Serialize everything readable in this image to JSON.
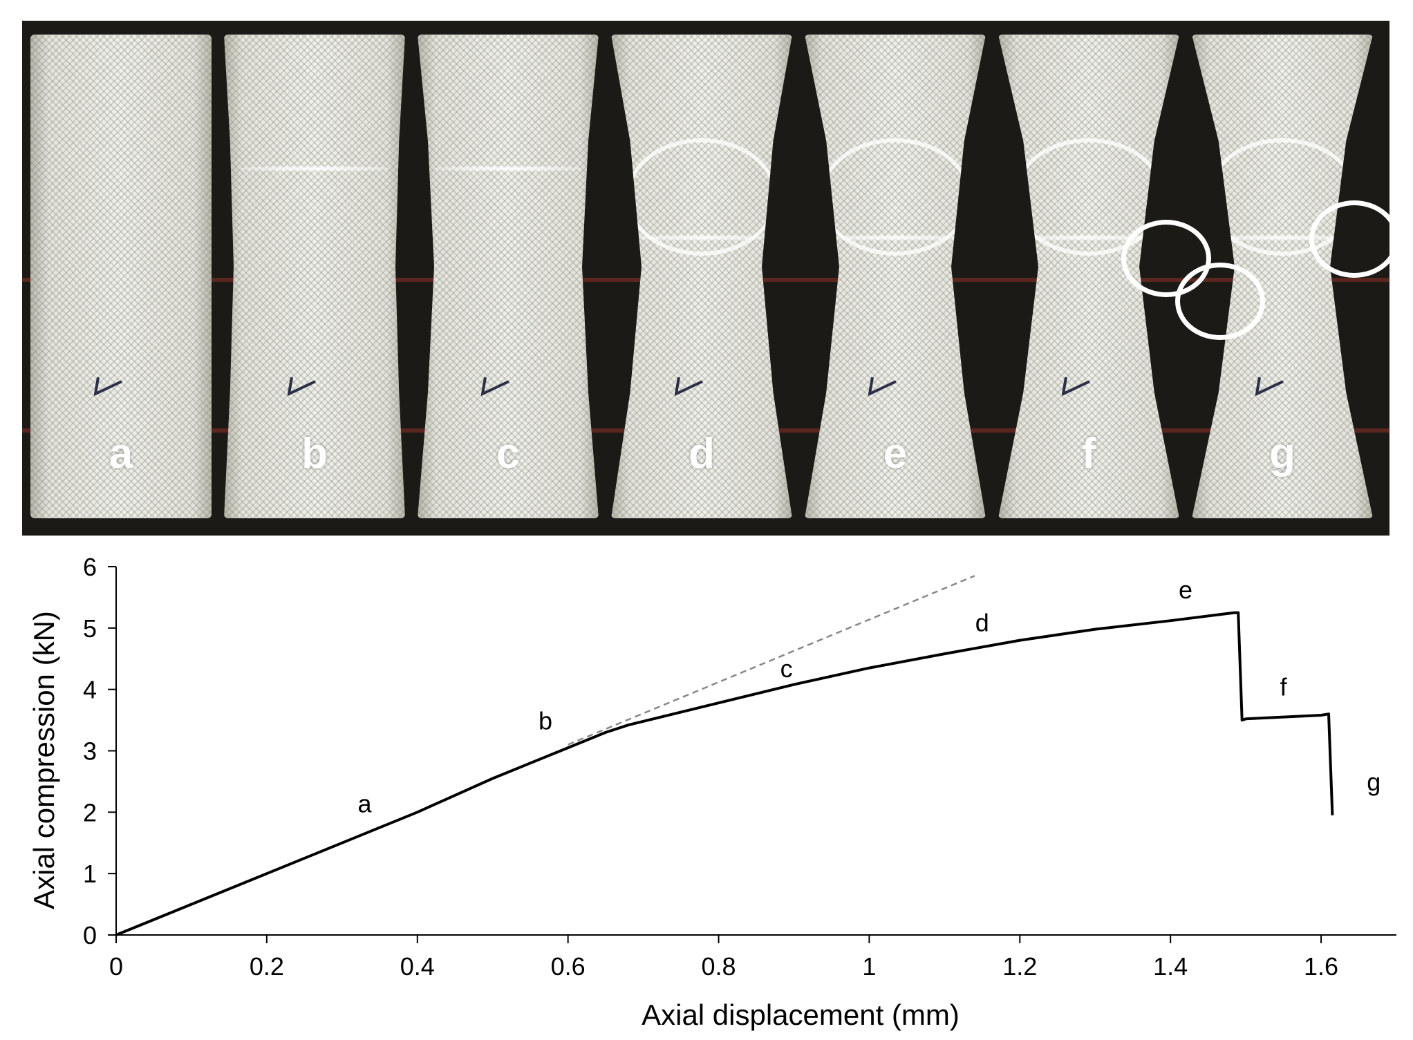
{
  "photo_panel": {
    "labels": [
      "a",
      "b",
      "c",
      "d",
      "e",
      "f",
      "g"
    ]
  },
  "chart_data": {
    "type": "line",
    "xlabel": "Axial displacement (mm)",
    "ylabel": "Axial compression (kN)",
    "xlim": [
      0,
      1.7
    ],
    "ylim": [
      0,
      6
    ],
    "xticks": [
      0,
      0.2,
      0.4,
      0.6,
      0.8,
      1,
      1.2,
      1.4,
      1.6
    ],
    "xtick_labels": [
      "0",
      "0.2",
      "0.4",
      "0.6",
      "0.8",
      "1",
      "1.2",
      "1.4",
      "1.6"
    ],
    "yticks": [
      0,
      1,
      2,
      3,
      4,
      5,
      6
    ],
    "ytick_labels": [
      "0",
      "1",
      "2",
      "3",
      "4",
      "5",
      "6"
    ],
    "grid": false,
    "series": [
      {
        "style": "solid",
        "color": "#000000",
        "x": [
          0,
          0.2,
          0.4,
          0.5,
          0.6,
          0.65,
          0.68,
          0.8,
          0.9,
          1.0,
          1.1,
          1.2,
          1.3,
          1.4,
          1.485,
          1.49,
          1.495,
          1.5,
          1.55,
          1.6,
          1.61,
          1.615
        ],
        "y": [
          0,
          1.0,
          2.0,
          2.55,
          3.05,
          3.3,
          3.42,
          3.78,
          4.08,
          4.35,
          4.58,
          4.8,
          4.98,
          5.12,
          5.25,
          5.25,
          3.5,
          3.52,
          3.55,
          3.58,
          3.6,
          1.95
        ]
      },
      {
        "style": "dashed",
        "color": "#888888",
        "x": [
          0.6,
          1.14
        ],
        "y": [
          3.1,
          5.85
        ]
      }
    ],
    "annotations": [
      {
        "text": "a",
        "x": 0.33,
        "y": 2.0
      },
      {
        "text": "b",
        "x": 0.57,
        "y": 3.35
      },
      {
        "text": "c",
        "x": 0.89,
        "y": 4.2
      },
      {
        "text": "d",
        "x": 1.15,
        "y": 4.95
      },
      {
        "text": "e",
        "x": 1.42,
        "y": 5.48
      },
      {
        "text": "f",
        "x": 1.55,
        "y": 3.9
      },
      {
        "text": "g",
        "x": 1.67,
        "y": 2.35
      }
    ]
  }
}
